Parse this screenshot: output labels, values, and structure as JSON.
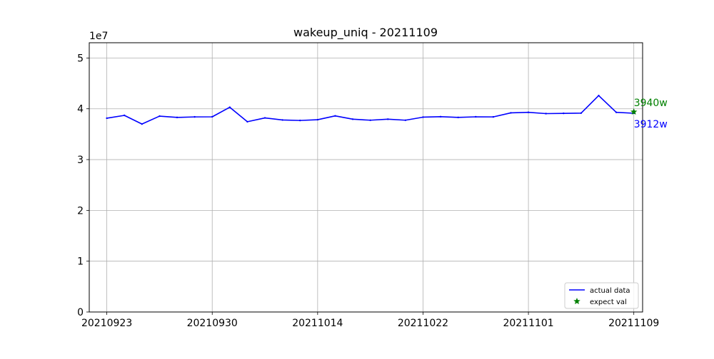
{
  "chart_data": {
    "type": "line",
    "title": "wakeup_uniq - 20211109",
    "xlabel": "",
    "ylabel": "",
    "y_exponent_label": "1e7",
    "ylim": [
      0,
      53000000
    ],
    "yticks": [
      0,
      10000000,
      20000000,
      30000000,
      40000000,
      50000000
    ],
    "ytick_labels": [
      "0",
      "1",
      "2",
      "3",
      "4",
      "5"
    ],
    "xlim": [
      -1.0,
      30.5
    ],
    "xticks": [
      0,
      6,
      12,
      18,
      24,
      30
    ],
    "xtick_labels": [
      "20210923",
      "20210930",
      "20211014",
      "20211022",
      "20211101",
      "20211109"
    ],
    "grid": true,
    "legend_position": "lower-right",
    "series": [
      {
        "name": "actual data",
        "color": "#0000ff",
        "style": "line",
        "x": [
          0,
          1,
          2,
          3,
          4,
          5,
          6,
          7,
          8,
          9,
          10,
          11,
          12,
          13,
          14,
          15,
          16,
          17,
          18,
          19,
          20,
          21,
          22,
          23,
          24,
          25,
          26,
          27,
          28,
          29,
          30
        ],
        "values": [
          38150000,
          38700000,
          37000000,
          38550000,
          38300000,
          38400000,
          38420000,
          40300000,
          37450000,
          38200000,
          37800000,
          37700000,
          37850000,
          38600000,
          37950000,
          37750000,
          37950000,
          37750000,
          38350000,
          38450000,
          38300000,
          38420000,
          38400000,
          39200000,
          39300000,
          39050000,
          39100000,
          39150000,
          42600000,
          39300000,
          39120000
        ]
      },
      {
        "name": "expect val",
        "color": "#008000",
        "style": "star",
        "x": [
          30
        ],
        "values": [
          39400000
        ]
      }
    ],
    "annotations": [
      {
        "text": "3940w",
        "x": 30,
        "y": 39400000,
        "color": "#008000",
        "placement": "above"
      },
      {
        "text": "3912w",
        "x": 30,
        "y": 39120000,
        "color": "#0000ff",
        "placement": "below"
      }
    ]
  }
}
